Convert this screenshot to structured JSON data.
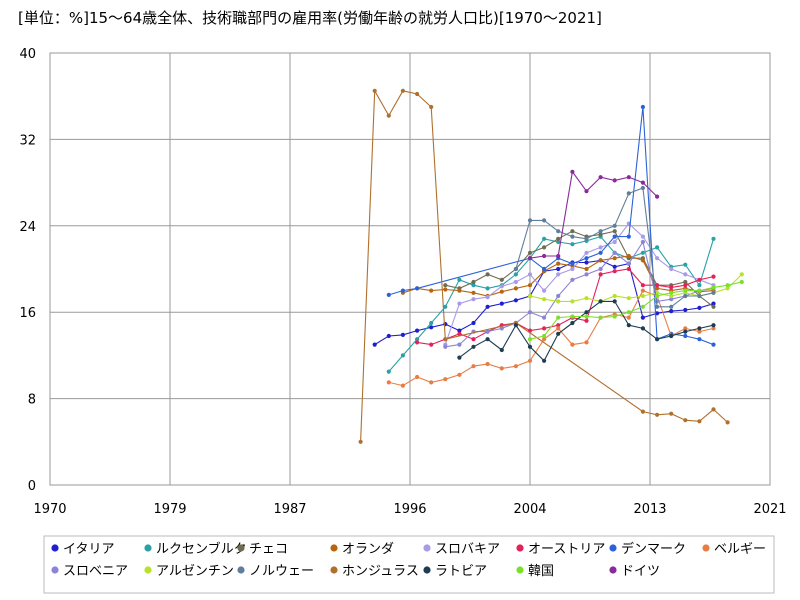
{
  "chart_data": {
    "type": "line",
    "title": "[単位：%]15～64歳全体、技術職部門の雇用率(労働年齢の就労人口比)[1970～2021]",
    "xlabel": "",
    "ylabel": "",
    "xlim": [
      1970,
      2021
    ],
    "ylim": [
      0,
      40
    ],
    "x_ticks": [
      "1970",
      "1979",
      "1987",
      "1996",
      "2004",
      "2013",
      "2021"
    ],
    "y_ticks": [
      "0",
      "8",
      "16",
      "24",
      "32",
      "40"
    ],
    "grid": true,
    "legend_position": "bottom",
    "series": [
      {
        "name": "イタリア",
        "color": "#1f1fd1",
        "points": [
          [
            1993,
            13.0
          ],
          [
            1994,
            13.8
          ],
          [
            1995,
            13.9
          ],
          [
            1996,
            14.3
          ],
          [
            1997,
            14.6
          ],
          [
            1998,
            14.9
          ],
          [
            1999,
            14.3
          ],
          [
            2000,
            15.0
          ],
          [
            2001,
            16.5
          ],
          [
            2002,
            16.8
          ],
          [
            2003,
            17.1
          ],
          [
            2004,
            17.5
          ],
          [
            2005,
            19.8
          ],
          [
            2006,
            20.0
          ],
          [
            2007,
            20.6
          ],
          [
            2008,
            20.6
          ],
          [
            2009,
            20.8
          ],
          [
            2010,
            20.2
          ],
          [
            2011,
            20.5
          ],
          [
            2012,
            15.5
          ],
          [
            2013,
            15.9
          ],
          [
            2014,
            16.1
          ],
          [
            2015,
            16.2
          ],
          [
            2016,
            16.4
          ],
          [
            2017,
            16.8
          ]
        ]
      },
      {
        "name": "ルクセンブルク",
        "color": "#2aa1a6",
        "points": [
          [
            1994,
            10.5
          ],
          [
            1995,
            12.0
          ],
          [
            1996,
            13.5
          ],
          [
            1997,
            15.0
          ],
          [
            1998,
            16.5
          ],
          [
            1999,
            19.0
          ],
          [
            2000,
            18.5
          ],
          [
            2001,
            18.2
          ],
          [
            2002,
            18.5
          ],
          [
            2003,
            19.5
          ],
          [
            2004,
            21.0
          ],
          [
            2005,
            22.8
          ],
          [
            2006,
            22.5
          ],
          [
            2007,
            22.3
          ],
          [
            2008,
            22.6
          ],
          [
            2009,
            23.0
          ],
          [
            2010,
            21.5
          ],
          [
            2011,
            21.0
          ],
          [
            2012,
            21.5
          ],
          [
            2013,
            22.0
          ],
          [
            2014,
            20.2
          ],
          [
            2015,
            20.4
          ],
          [
            2016,
            18.5
          ],
          [
            2017,
            22.8
          ]
        ]
      },
      {
        "name": "チェコ",
        "color": "#6f6c52",
        "points": [
          [
            1998,
            18.5
          ],
          [
            1999,
            18.2
          ],
          [
            2000,
            18.8
          ],
          [
            2001,
            19.5
          ],
          [
            2002,
            19.0
          ],
          [
            2003,
            20.0
          ],
          [
            2004,
            21.5
          ],
          [
            2005,
            22.0
          ],
          [
            2006,
            22.8
          ],
          [
            2007,
            23.5
          ],
          [
            2008,
            23.0
          ],
          [
            2009,
            23.2
          ],
          [
            2010,
            23.5
          ],
          [
            2011,
            21.0
          ],
          [
            2012,
            21.0
          ],
          [
            2013,
            18.5
          ],
          [
            2014,
            18.5
          ],
          [
            2015,
            18.8
          ],
          [
            2016,
            17.5
          ],
          [
            2017,
            16.5
          ]
        ]
      },
      {
        "name": "オランダ",
        "color": "#b8650f",
        "points": [
          [
            1995,
            17.8
          ],
          [
            1996,
            18.2
          ],
          [
            1997,
            18.0
          ],
          [
            1998,
            18.1
          ],
          [
            1999,
            18.0
          ],
          [
            2000,
            17.8
          ],
          [
            2001,
            17.5
          ],
          [
            2002,
            17.9
          ],
          [
            2003,
            18.2
          ],
          [
            2004,
            18.5
          ],
          [
            2005,
            19.8
          ],
          [
            2006,
            20.5
          ],
          [
            2007,
            20.3
          ],
          [
            2008,
            20.0
          ],
          [
            2009,
            20.8
          ],
          [
            2010,
            21.0
          ],
          [
            2011,
            21.2
          ],
          [
            2012,
            20.8
          ],
          [
            2013,
            18.2
          ],
          [
            2014,
            18.0
          ],
          [
            2015,
            18.2
          ],
          [
            2016,
            17.9
          ],
          [
            2017,
            18.0
          ]
        ]
      },
      {
        "name": "スロバキア",
        "color": "#a99be8",
        "points": [
          [
            1998,
            13.0
          ],
          [
            1999,
            16.8
          ],
          [
            2000,
            17.2
          ],
          [
            2001,
            17.4
          ],
          [
            2002,
            18.4
          ],
          [
            2003,
            18.8
          ],
          [
            2004,
            19.5
          ],
          [
            2005,
            18.0
          ],
          [
            2006,
            19.5
          ],
          [
            2007,
            20.0
          ],
          [
            2008,
            21.5
          ],
          [
            2009,
            22.0
          ],
          [
            2010,
            22.5
          ],
          [
            2011,
            24.2
          ],
          [
            2012,
            23.0
          ],
          [
            2013,
            21.0
          ],
          [
            2014,
            20.0
          ],
          [
            2015,
            19.5
          ],
          [
            2016,
            19.0
          ],
          [
            2017,
            18.5
          ]
        ]
      },
      {
        "name": "オーストリア",
        "color": "#e5215a",
        "points": [
          [
            1996,
            13.2
          ],
          [
            1997,
            13.0
          ],
          [
            1998,
            13.5
          ],
          [
            1999,
            14.0
          ],
          [
            2000,
            13.5
          ],
          [
            2001,
            14.2
          ],
          [
            2002,
            14.8
          ],
          [
            2003,
            15.0
          ],
          [
            2004,
            14.3
          ],
          [
            2005,
            14.5
          ],
          [
            2006,
            14.8
          ],
          [
            2007,
            15.5
          ],
          [
            2008,
            15.2
          ],
          [
            2009,
            19.5
          ],
          [
            2010,
            19.8
          ],
          [
            2011,
            20.0
          ],
          [
            2012,
            18.5
          ],
          [
            2013,
            18.5
          ],
          [
            2014,
            18.3
          ],
          [
            2015,
            18.5
          ],
          [
            2016,
            19.0
          ],
          [
            2017,
            19.3
          ]
        ]
      },
      {
        "name": "デンマーク",
        "color": "#2c62d8",
        "points": [
          [
            1994,
            17.6
          ],
          [
            1995,
            18.0
          ],
          [
            1996,
            18.2
          ],
          [
            2004,
            21.0
          ],
          [
            2005,
            20.0
          ],
          [
            2006,
            21.0
          ],
          [
            2007,
            20.5
          ],
          [
            2008,
            21.0
          ],
          [
            2009,
            21.5
          ],
          [
            2010,
            23.0
          ],
          [
            2011,
            23.0
          ],
          [
            2012,
            35.0
          ],
          [
            2013,
            13.5
          ],
          [
            2014,
            14.0
          ],
          [
            2015,
            13.8
          ],
          [
            2016,
            13.5
          ],
          [
            2017,
            13.0
          ]
        ]
      },
      {
        "name": "ベルギー",
        "color": "#e87d43",
        "points": [
          [
            1994,
            9.5
          ],
          [
            1995,
            9.2
          ],
          [
            1996,
            10.0
          ],
          [
            1997,
            9.5
          ],
          [
            1998,
            9.8
          ],
          [
            1999,
            10.2
          ],
          [
            2000,
            11.0
          ],
          [
            2001,
            11.2
          ],
          [
            2002,
            10.8
          ],
          [
            2003,
            11.0
          ],
          [
            2004,
            11.5
          ],
          [
            2005,
            13.5
          ],
          [
            2006,
            14.5
          ],
          [
            2007,
            13.0
          ],
          [
            2008,
            13.2
          ],
          [
            2009,
            15.5
          ],
          [
            2010,
            15.8
          ],
          [
            2011,
            15.5
          ],
          [
            2012,
            18.0
          ],
          [
            2013,
            17.5
          ],
          [
            2014,
            13.8
          ],
          [
            2015,
            14.5
          ],
          [
            2016,
            14.2
          ],
          [
            2017,
            14.5
          ]
        ]
      },
      {
        "name": "スロベニア",
        "color": "#8c84d6",
        "points": [
          [
            1998,
            12.8
          ],
          [
            1999,
            13.0
          ],
          [
            2000,
            14.2
          ],
          [
            2001,
            14.2
          ],
          [
            2002,
            14.5
          ],
          [
            2003,
            15.0
          ],
          [
            2004,
            16.0
          ],
          [
            2005,
            15.5
          ],
          [
            2006,
            17.5
          ],
          [
            2007,
            19.0
          ],
          [
            2008,
            19.5
          ],
          [
            2009,
            20.0
          ],
          [
            2010,
            21.5
          ],
          [
            2011,
            20.5
          ],
          [
            2012,
            22.5
          ],
          [
            2013,
            17.0
          ],
          [
            2014,
            17.2
          ],
          [
            2015,
            17.5
          ],
          [
            2016,
            18.0
          ],
          [
            2017,
            18.2
          ]
        ]
      },
      {
        "name": "アルゼンチン",
        "color": "#b8e22a",
        "points": [
          [
            2004,
            17.5
          ],
          [
            2005,
            17.2
          ],
          [
            2006,
            17.0
          ],
          [
            2007,
            17.0
          ],
          [
            2008,
            17.3
          ],
          [
            2009,
            17.0
          ],
          [
            2010,
            17.5
          ],
          [
            2011,
            17.3
          ],
          [
            2012,
            17.5
          ],
          [
            2013,
            17.8
          ],
          [
            2014,
            17.5
          ],
          [
            2015,
            17.8
          ],
          [
            2016,
            17.5
          ],
          [
            2017,
            17.8
          ],
          [
            2018,
            18.2
          ],
          [
            2019,
            19.5
          ]
        ]
      },
      {
        "name": "ノルウェー",
        "color": "#5f7e9b",
        "points": [
          [
            2003,
            20.0
          ],
          [
            2004,
            24.5
          ],
          [
            2005,
            24.5
          ],
          [
            2006,
            23.5
          ],
          [
            2007,
            23.0
          ],
          [
            2008,
            22.8
          ],
          [
            2009,
            23.5
          ],
          [
            2010,
            24.0
          ],
          [
            2011,
            27.0
          ],
          [
            2012,
            27.5
          ],
          [
            2013,
            16.5
          ],
          [
            2014,
            16.5
          ],
          [
            2015,
            17.5
          ],
          [
            2016,
            17.5
          ],
          [
            2017,
            17.8
          ]
        ]
      },
      {
        "name": "ホンジュラス",
        "color": "#b0702e",
        "points": [
          [
            1992,
            4.0
          ],
          [
            1993,
            36.5
          ],
          [
            1994,
            34.2
          ],
          [
            1995,
            36.5
          ],
          [
            1996,
            36.2
          ],
          [
            1997,
            35.0
          ],
          [
            1998,
            13.5
          ],
          [
            2003,
            15.0
          ],
          [
            2012,
            6.8
          ],
          [
            2013,
            6.5
          ],
          [
            2014,
            6.6
          ],
          [
            2015,
            6.0
          ],
          [
            2016,
            5.9
          ],
          [
            2017,
            7.0
          ],
          [
            2018,
            5.8
          ]
        ]
      },
      {
        "name": "ラトビア",
        "color": "#1c3d52",
        "points": [
          [
            1999,
            11.8
          ],
          [
            2000,
            12.8
          ],
          [
            2001,
            13.5
          ],
          [
            2002,
            12.5
          ],
          [
            2003,
            14.8
          ],
          [
            2004,
            12.8
          ],
          [
            2005,
            11.5
          ],
          [
            2006,
            14.0
          ],
          [
            2007,
            15.0
          ],
          [
            2008,
            16.0
          ],
          [
            2009,
            17.0
          ],
          [
            2010,
            17.0
          ],
          [
            2011,
            14.8
          ],
          [
            2012,
            14.5
          ],
          [
            2013,
            13.5
          ],
          [
            2014,
            13.8
          ],
          [
            2015,
            14.2
          ],
          [
            2016,
            14.5
          ],
          [
            2017,
            14.8
          ]
        ]
      },
      {
        "name": "韓国",
        "color": "#7be02a",
        "points": [
          [
            2004,
            13.5
          ],
          [
            2005,
            13.8
          ],
          [
            2006,
            15.5
          ],
          [
            2007,
            15.6
          ],
          [
            2008,
            15.6
          ],
          [
            2009,
            15.5
          ],
          [
            2010,
            15.6
          ],
          [
            2011,
            16.0
          ],
          [
            2012,
            16.5
          ],
          [
            2013,
            17.5
          ],
          [
            2014,
            17.8
          ],
          [
            2015,
            18.0
          ],
          [
            2016,
            18.0
          ],
          [
            2017,
            18.3
          ],
          [
            2018,
            18.5
          ],
          [
            2019,
            18.8
          ]
        ]
      },
      {
        "name": "ドイツ",
        "color": "#8a2a9b",
        "points": [
          [
            2004,
            21.0
          ],
          [
            2005,
            21.2
          ],
          [
            2006,
            21.2
          ],
          [
            2007,
            29.0
          ],
          [
            2008,
            27.2
          ],
          [
            2009,
            28.5
          ],
          [
            2010,
            28.2
          ],
          [
            2011,
            28.5
          ],
          [
            2012,
            28.0
          ],
          [
            2013,
            26.7
          ]
        ]
      }
    ]
  }
}
